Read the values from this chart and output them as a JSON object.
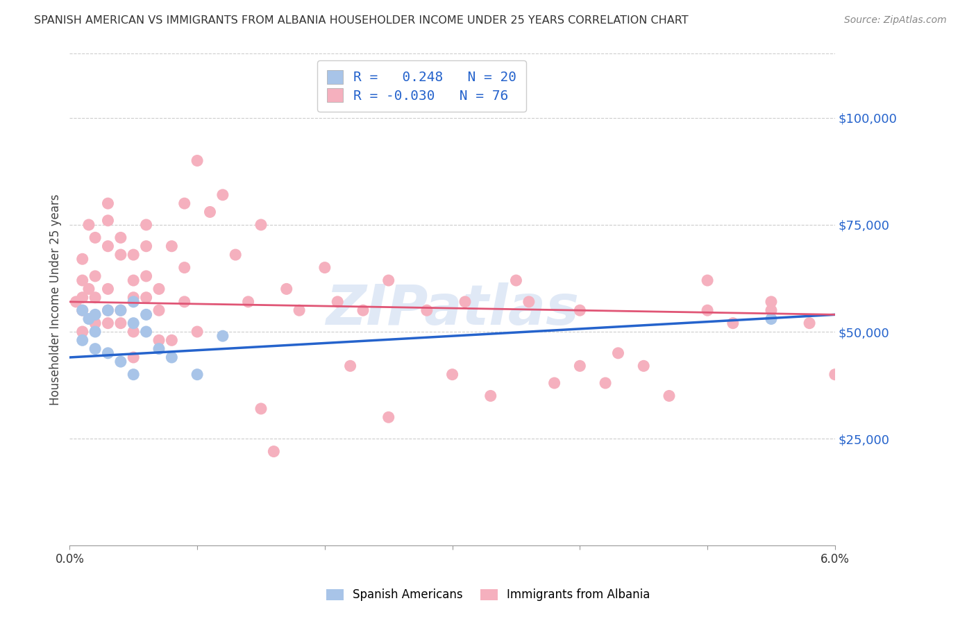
{
  "title": "SPANISH AMERICAN VS IMMIGRANTS FROM ALBANIA HOUSEHOLDER INCOME UNDER 25 YEARS CORRELATION CHART",
  "source": "Source: ZipAtlas.com",
  "ylabel": "Householder Income Under 25 years",
  "xlim": [
    0.0,
    0.06
  ],
  "ylim": [
    0,
    115000
  ],
  "xtick_labels": [
    "0.0%",
    "",
    "",
    "",
    "",
    "",
    "6.0%"
  ],
  "xtick_values": [
    0.0,
    0.01,
    0.02,
    0.03,
    0.04,
    0.05,
    0.06
  ],
  "ytick_labels": [
    "$25,000",
    "$50,000",
    "$75,000",
    "$100,000"
  ],
  "ytick_values": [
    25000,
    50000,
    75000,
    100000
  ],
  "blue_R": "0.248",
  "blue_N": "20",
  "pink_R": "-0.030",
  "pink_N": "76",
  "blue_color": "#a8c4e8",
  "pink_color": "#f5b0be",
  "blue_line_color": "#2563cc",
  "pink_line_color": "#e05575",
  "watermark": "ZIPatlas",
  "legend_label_blue": "Spanish Americans",
  "legend_label_pink": "Immigrants from Albania",
  "blue_line_x0": 0.0,
  "blue_line_y0": 44000,
  "blue_line_x1": 0.06,
  "blue_line_y1": 54000,
  "pink_line_x0": 0.0,
  "pink_line_y0": 57000,
  "pink_line_x1": 0.06,
  "pink_line_y1": 54000,
  "blue_scatter_x": [
    0.001,
    0.001,
    0.0015,
    0.002,
    0.002,
    0.002,
    0.003,
    0.003,
    0.004,
    0.004,
    0.005,
    0.005,
    0.005,
    0.006,
    0.006,
    0.007,
    0.008,
    0.01,
    0.012,
    0.055
  ],
  "blue_scatter_y": [
    55000,
    48000,
    53000,
    50000,
    54000,
    46000,
    45000,
    55000,
    43000,
    55000,
    40000,
    52000,
    57000,
    50000,
    54000,
    46000,
    44000,
    40000,
    49000,
    53000
  ],
  "pink_scatter_x": [
    0.0005,
    0.001,
    0.001,
    0.001,
    0.001,
    0.001,
    0.0015,
    0.0015,
    0.002,
    0.002,
    0.002,
    0.002,
    0.003,
    0.003,
    0.003,
    0.003,
    0.003,
    0.003,
    0.004,
    0.004,
    0.004,
    0.004,
    0.005,
    0.005,
    0.005,
    0.005,
    0.005,
    0.006,
    0.006,
    0.006,
    0.006,
    0.007,
    0.007,
    0.007,
    0.008,
    0.008,
    0.009,
    0.009,
    0.009,
    0.01,
    0.01,
    0.011,
    0.012,
    0.013,
    0.014,
    0.015,
    0.015,
    0.016,
    0.017,
    0.018,
    0.02,
    0.021,
    0.022,
    0.023,
    0.025,
    0.025,
    0.028,
    0.03,
    0.031,
    0.033,
    0.035,
    0.036,
    0.038,
    0.04,
    0.04,
    0.042,
    0.043,
    0.045,
    0.047,
    0.05,
    0.05,
    0.052,
    0.055,
    0.055,
    0.058,
    0.06
  ],
  "pink_scatter_y": [
    57000,
    62000,
    58000,
    55000,
    67000,
    50000,
    60000,
    75000,
    58000,
    63000,
    52000,
    72000,
    80000,
    76000,
    70000,
    60000,
    55000,
    52000,
    72000,
    68000,
    55000,
    52000,
    68000,
    62000,
    58000,
    50000,
    44000,
    75000,
    70000,
    63000,
    58000,
    60000,
    55000,
    48000,
    70000,
    48000,
    80000,
    65000,
    57000,
    90000,
    50000,
    78000,
    82000,
    68000,
    57000,
    75000,
    32000,
    22000,
    60000,
    55000,
    65000,
    57000,
    42000,
    55000,
    62000,
    30000,
    55000,
    40000,
    57000,
    35000,
    62000,
    57000,
    38000,
    55000,
    42000,
    38000,
    45000,
    42000,
    35000,
    62000,
    55000,
    52000,
    57000,
    55000,
    52000,
    40000
  ]
}
